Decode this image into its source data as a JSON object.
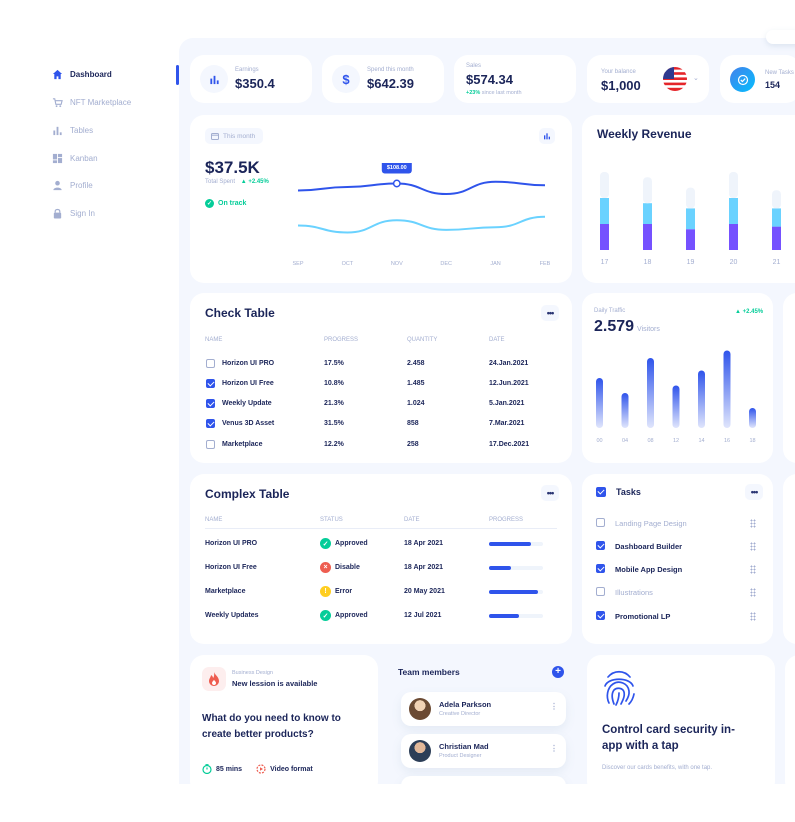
{
  "sidebar": {
    "items": [
      {
        "label": "Dashboard",
        "icon": "home-icon"
      },
      {
        "label": "NFT Marketplace",
        "icon": "cart-icon"
      },
      {
        "label": "Tables",
        "icon": "bar-chart-icon"
      },
      {
        "label": "Kanban",
        "icon": "grid-icon"
      },
      {
        "label": "Profile",
        "icon": "user-icon"
      },
      {
        "label": "Sign In",
        "icon": "lock-icon"
      }
    ]
  },
  "stats": {
    "earnings": {
      "label": "Earnings",
      "value": "$350.4"
    },
    "spend": {
      "label": "Spend this month",
      "value": "$642.39"
    },
    "sales": {
      "label": "Sales",
      "value": "$574.34",
      "change": "+23%",
      "note": "since last month"
    },
    "balance": {
      "label": "Your balance",
      "value": "$1,000"
    },
    "tasks": {
      "label": "New Tasks",
      "value": "154"
    }
  },
  "total_spent": {
    "period_button": "This month",
    "value": "$37.5K",
    "label": "Total Spent",
    "change": "+2.45%",
    "status": "On track",
    "tooltip": "$108.00"
  },
  "weekly_revenue": {
    "title": "Weekly Revenue"
  },
  "daily_traffic": {
    "label": "Daily Traffic",
    "value": "2.579",
    "unit": "Visitors",
    "change": "+2.45%"
  },
  "check_table": {
    "title": "Check Table",
    "headers": [
      "NAME",
      "PROGRESS",
      "QUANTITY",
      "DATE"
    ],
    "rows": [
      {
        "name": "Horizon UI PRO",
        "progress": "17.5%",
        "quantity": "2.458",
        "date": "24.Jan.2021",
        "checked": false
      },
      {
        "name": "Horizon UI Free",
        "progress": "10.8%",
        "quantity": "1.485",
        "date": "12.Jun.2021",
        "checked": true
      },
      {
        "name": "Weekly Update",
        "progress": "21.3%",
        "quantity": "1.024",
        "date": "5.Jan.2021",
        "checked": true
      },
      {
        "name": "Venus 3D Asset",
        "progress": "31.5%",
        "quantity": "858",
        "date": "7.Mar.2021",
        "checked": true
      },
      {
        "name": "Marketplace",
        "progress": "12.2%",
        "quantity": "258",
        "date": "17.Dec.2021",
        "checked": false
      }
    ]
  },
  "complex_table": {
    "title": "Complex Table",
    "headers": [
      "NAME",
      "STATUS",
      "DATE",
      "PROGRESS"
    ],
    "rows": [
      {
        "name": "Horizon UI PRO",
        "status": "Approved",
        "date": "18 Apr 2021",
        "progress": 0.78
      },
      {
        "name": "Horizon UI Free",
        "status": "Disable",
        "date": "18 Apr 2021",
        "progress": 0.4
      },
      {
        "name": "Marketplace",
        "status": "Error",
        "date": "20 May 2021",
        "progress": 0.9
      },
      {
        "name": "Weekly Updates",
        "status": "Approved",
        "date": "12 Jul 2021",
        "progress": 0.55
      }
    ]
  },
  "tasks": {
    "title": "Tasks",
    "items": [
      {
        "label": "Landing Page Design",
        "checked": false
      },
      {
        "label": "Dashboard Builder",
        "checked": true
      },
      {
        "label": "Mobile App Design",
        "checked": true
      },
      {
        "label": "Illustrations",
        "checked": false
      },
      {
        "label": "Promotional LP",
        "checked": true
      }
    ]
  },
  "lesson": {
    "tag": "Business Design",
    "headline": "New lession is available",
    "question": "What do you need to know to create better products?",
    "duration": "85 mins",
    "format": "Video format"
  },
  "team": {
    "title": "Team members",
    "members": [
      {
        "name": "Adela Parkson",
        "role": "Creative Director"
      },
      {
        "name": "Christian Mad",
        "role": "Product Designer"
      }
    ]
  },
  "security": {
    "title": "Control card security in-app with a tap",
    "text": "Discover our cards benefits, with one tap."
  },
  "colors": {
    "brand": "#2f54eb",
    "navy": "#1b2559",
    "green": "#05cd99",
    "light_blue": "#6ad2ff",
    "muted": "#a3aed0",
    "purple": "#7551ff"
  },
  "chart_data": [
    {
      "type": "line",
      "categories": [
        "SEP",
        "OCT",
        "NOV",
        "DEC",
        "JAN",
        "FEB"
      ],
      "series": [
        {
          "values": [
            100,
            104,
            108,
            96,
            110,
            106
          ],
          "color": "#2f54eb"
        },
        {
          "values": [
            60,
            52,
            66,
            55,
            58,
            70
          ],
          "color": "#6ad2ff"
        }
      ]
    },
    {
      "type": "bar",
      "stacked": true,
      "categories": [
        "17",
        "18",
        "19",
        "20",
        "21"
      ],
      "series": [
        {
          "values": [
            10,
            10,
            8,
            10,
            9
          ],
          "color": "#7551ff"
        },
        {
          "values": [
            10,
            8,
            8,
            10,
            7
          ],
          "color": "#6ad2ff"
        },
        {
          "values": [
            10,
            10,
            8,
            10,
            7
          ],
          "color": "#eff4fb"
        }
      ]
    },
    {
      "type": "bar",
      "categories": [
        "00",
        "04",
        "08",
        "12",
        "14",
        "16",
        "18"
      ],
      "values": [
        20,
        14,
        28,
        17,
        23,
        31,
        8
      ]
    }
  ]
}
